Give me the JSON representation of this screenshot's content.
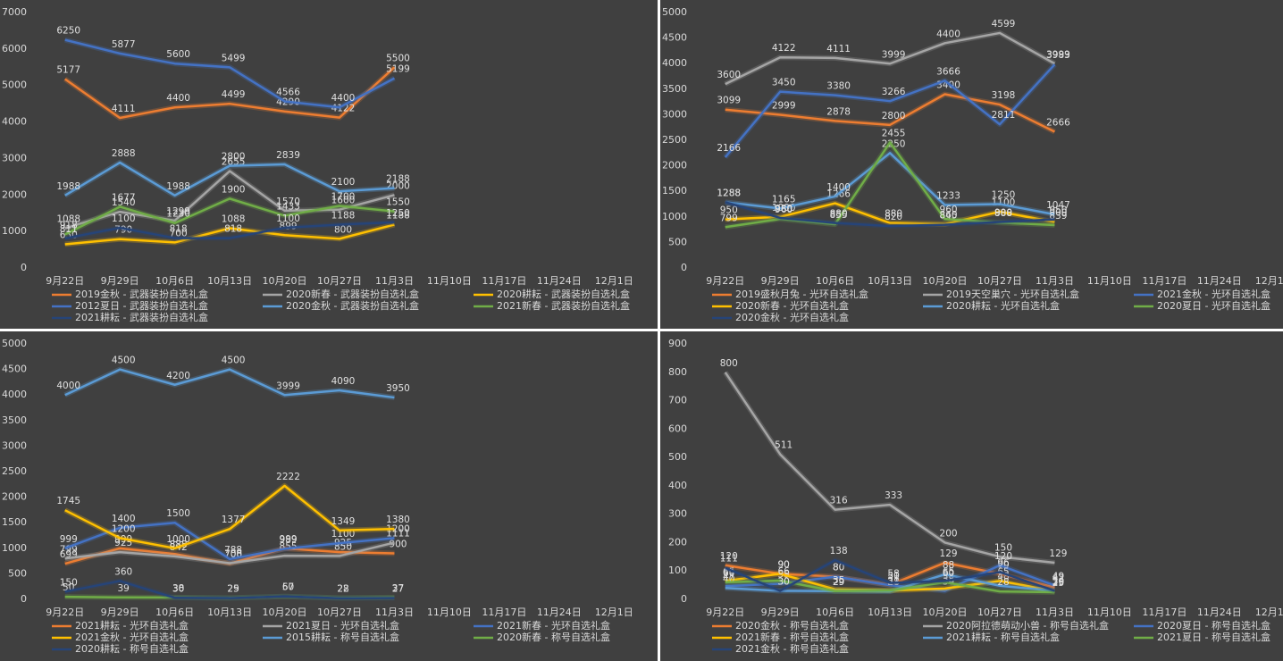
{
  "chart_data": [
    {
      "type": "line",
      "categories": [
        "9月22日",
        "9月29日",
        "10月6日",
        "10月13日",
        "10月20日",
        "10月27日",
        "11月3日",
        "11月10日",
        "11月17日",
        "11月24日",
        "12月1日"
      ],
      "ylim": [
        0,
        7000
      ],
      "yticks": [
        0,
        1000,
        2000,
        3000,
        4000,
        5000,
        6000,
        7000
      ],
      "grid": false,
      "series": [
        {
          "name": "2019金秋 - 武器装扮自选礼盒",
          "color": "#ed7d31",
          "values": [
            5177,
            4111,
            4400,
            4499,
            4290,
            4122,
            5500,
            null,
            null,
            null,
            null
          ]
        },
        {
          "name": "2020新春 - 武器装扮自选礼盒",
          "color": "#a5a5a5",
          "values": [
            1088,
            1540,
            1299,
            2655,
            1570,
            1600,
            2000,
            null,
            null,
            null,
            null
          ]
        },
        {
          "name": "2020耕耘 - 武器装扮自选礼盒",
          "color": "#ffc000",
          "values": [
            650,
            790,
            700,
            1088,
            899,
            800,
            1188,
            null,
            null,
            null,
            null
          ]
        },
        {
          "name": "2012夏日 - 武器装扮自选礼盒",
          "color": "#4472c4",
          "values": [
            6250,
            5877,
            5600,
            5499,
            4566,
            4400,
            5199,
            null,
            null,
            null,
            null
          ]
        },
        {
          "name": "2020金秋 - 武器装扮自选礼盒",
          "color": "#5b9bd5",
          "values": [
            1988,
            2888,
            1988,
            2800,
            2839,
            2100,
            2188,
            null,
            null,
            null,
            null
          ]
        },
        {
          "name": "2021新春 - 武器装扮自选礼盒",
          "color": "#70ad47",
          "values": [
            918,
            1677,
            1230,
            1900,
            1433,
            1700,
            1550,
            null,
            null,
            null,
            null
          ]
        },
        {
          "name": "2021耕耘 - 武器装扮自选礼盒",
          "color": "#264478",
          "values": [
            811,
            1100,
            818,
            818,
            1100,
            1188,
            1250,
            null,
            null,
            null,
            null
          ]
        }
      ]
    },
    {
      "type": "line",
      "categories": [
        "9月22日",
        "9月29日",
        "10月6日",
        "10月13日",
        "10月20日",
        "10月27日",
        "11月3日",
        "11月10日",
        "11月17日",
        "11月24日",
        "12月1日"
      ],
      "ylim": [
        0,
        5000
      ],
      "yticks": [
        0,
        500,
        1000,
        1500,
        2000,
        2500,
        3000,
        3500,
        4000,
        4500,
        5000
      ],
      "grid": false,
      "series": [
        {
          "name": "2019盛秋月兔 - 光环自选礼盒",
          "color": "#ed7d31",
          "values": [
            3099,
            2999,
            2878,
            2800,
            3400,
            3198,
            2666,
            null,
            null,
            null,
            null
          ]
        },
        {
          "name": "2019天空巢穴 - 光环自选礼盒",
          "color": "#a5a5a5",
          "values": [
            3600,
            4122,
            4111,
            3999,
            4400,
            4599,
            3999,
            null,
            null,
            null,
            null
          ]
        },
        {
          "name": "2021金秋 - 光环自选礼盒",
          "color": "#4472c4",
          "values": [
            2166,
            3450,
            3380,
            3266,
            3666,
            2811,
            3983,
            null,
            null,
            null,
            null
          ]
        },
        {
          "name": "2020新春 - 光环自选礼盒",
          "color": "#ffc000",
          "values": [
            950,
            1000,
            1266,
            880,
            860,
            1100,
            900,
            null,
            null,
            null,
            null
          ]
        },
        {
          "name": "2020耕耘 - 光环自选礼盒",
          "color": "#5b9bd5",
          "values": [
            1288,
            1165,
            1400,
            2250,
            1233,
            1250,
            1047,
            null,
            null,
            null,
            null
          ]
        },
        {
          "name": "2020夏日 - 光环自选礼盒",
          "color": "#70ad47",
          "values": [
            799,
            960,
            855,
            2455,
            960,
            888,
            839,
            null,
            null,
            null,
            null
          ]
        },
        {
          "name": "2020金秋 - 光环自选礼盒",
          "color": "#264478",
          "values": [
            1288,
            980,
            880,
            820,
            845,
            900,
            950,
            null,
            null,
            null,
            null
          ]
        }
      ]
    },
    {
      "type": "line",
      "categories": [
        "9月22日",
        "9月29日",
        "10月6日",
        "10月13日",
        "10月20日",
        "10月27日",
        "11月3日",
        "11月10日",
        "11月17日",
        "11月24日",
        "12月1日"
      ],
      "ylim": [
        0,
        5000
      ],
      "yticks": [
        0,
        500,
        1000,
        1500,
        2000,
        2500,
        3000,
        3500,
        4000,
        4500,
        5000
      ],
      "grid": false,
      "series": [
        {
          "name": "2021耕耘 - 光环自选礼盒",
          "color": "#ed7d31",
          "values": [
            699,
            999,
            888,
            700,
            999,
            925,
            900,
            null,
            null,
            null,
            null
          ]
        },
        {
          "name": "2021夏日 - 光环自选礼盒",
          "color": "#a5a5a5",
          "values": [
            799,
            925,
            842,
            708,
            855,
            850,
            1111,
            null,
            null,
            null,
            null
          ]
        },
        {
          "name": "2021新春 - 光环自选礼盒",
          "color": "#4472c4",
          "values": [
            999,
            1400,
            1500,
            788,
            989,
            1100,
            1200,
            null,
            null,
            null,
            null
          ]
        },
        {
          "name": "2021金秋 - 光环自选礼盒",
          "color": "#ffc000",
          "values": [
            1745,
            1200,
            1000,
            1377,
            2222,
            1349,
            1380,
            null,
            null,
            null,
            null
          ]
        },
        {
          "name": "2015耕耘 - 称号自选礼盒",
          "color": "#5b9bd5",
          "values": [
            4000,
            4500,
            4200,
            4500,
            3999,
            4090,
            3950,
            null,
            null,
            null,
            null
          ]
        },
        {
          "name": "2020新春 - 称号自选礼盒",
          "color": "#70ad47",
          "values": [
            50,
            39,
            38,
            29,
            57,
            28,
            37,
            null,
            null,
            null,
            null
          ]
        },
        {
          "name": "2020耕耘 - 称号自选礼盒",
          "color": "#264478",
          "values": [
            150,
            360,
            30,
            25,
            60,
            22,
            27,
            null,
            null,
            null,
            null
          ]
        }
      ]
    },
    {
      "type": "line",
      "categories": [
        "9月22日",
        "9月29日",
        "10月6日",
        "10月13日",
        "10月20日",
        "10月27日",
        "11月3日",
        "11月10日",
        "11月17日",
        "11月24日",
        "12月1日"
      ],
      "ylim": [
        0,
        900
      ],
      "yticks": [
        0,
        100,
        200,
        300,
        400,
        500,
        600,
        700,
        800,
        900
      ],
      "grid": false,
      "series": [
        {
          "name": "2020金秋 - 称号自选礼盒",
          "color": "#ed7d31",
          "values": [
            120,
            90,
            80,
            51,
            129,
            90,
            42,
            null,
            null,
            null,
            null
          ]
        },
        {
          "name": "2020阿拉德萌动小兽 - 称号自选礼盒",
          "color": "#a5a5a5",
          "values": [
            800,
            511,
            316,
            333,
            200,
            150,
            129,
            null,
            null,
            null,
            null
          ]
        },
        {
          "name": "2020夏日 - 称号自选礼盒",
          "color": "#4472c4",
          "values": [
            47,
            55,
            80,
            50,
            30,
            120,
            49,
            null,
            null,
            null,
            null
          ]
        },
        {
          "name": "2021新春 - 称号自选礼盒",
          "color": "#ffc000",
          "values": [
            65,
            90,
            35,
            31,
            38,
            65,
            29,
            null,
            null,
            null,
            null
          ]
        },
        {
          "name": "2021耕耘 - 称号自选礼盒",
          "color": "#5b9bd5",
          "values": [
            40,
            30,
            29,
            28,
            88,
            48,
            30,
            null,
            null,
            null,
            null
          ]
        },
        {
          "name": "2021夏日 - 称号自选礼盒",
          "color": "#70ad47",
          "values": [
            60,
            66,
            29,
            31,
            60,
            28,
            25,
            null,
            null,
            null,
            null
          ]
        },
        {
          "name": "2021金秋 - 称号自选礼盒",
          "color": "#264478",
          "values": [
            111,
            30,
            138,
            58,
            65,
            96,
            30,
            null,
            null,
            null,
            null
          ]
        }
      ]
    }
  ]
}
